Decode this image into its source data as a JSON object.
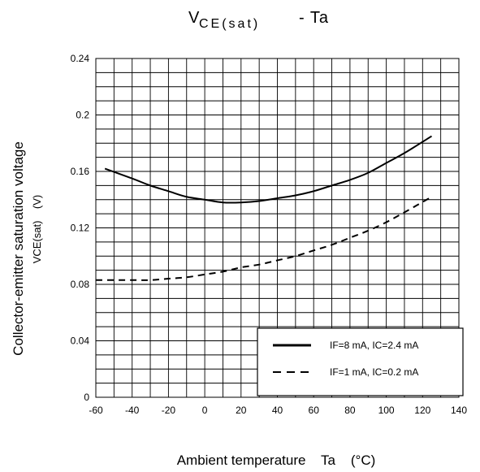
{
  "chart_data": {
    "type": "line",
    "title": "VCE(sat) - Ta",
    "title_parts": {
      "main": "V",
      "sub": "CE(sat)",
      "tail": "- Ta"
    },
    "xlabel": "Ambient temperature    Ta    (°C)",
    "ylabel_line1": "Collector-emitter saturation voltage",
    "ylabel_line2": "VCE(sat)    (V)",
    "xlim": [
      -60,
      140
    ],
    "ylim": [
      0,
      0.24
    ],
    "x_ticks": [
      "-60",
      "-40",
      "-20",
      "0",
      "20",
      "40",
      "60",
      "80",
      "100",
      "120",
      "140"
    ],
    "y_ticks": [
      "0",
      "0.04",
      "0.08",
      "0.12",
      "0.16",
      "0.2",
      "0.24"
    ],
    "grid": true,
    "legend_position": "bottom-right",
    "series": [
      {
        "name": "IF=8 mA, IC=2.4 mA",
        "style": "solid",
        "x": [
          -55,
          -40,
          -30,
          -20,
          -10,
          0,
          10,
          20,
          30,
          40,
          50,
          60,
          70,
          80,
          90,
          100,
          110,
          125
        ],
        "y": [
          0.162,
          0.155,
          0.15,
          0.146,
          0.142,
          0.14,
          0.138,
          0.138,
          0.139,
          0.141,
          0.143,
          0.146,
          0.15,
          0.154,
          0.159,
          0.166,
          0.173,
          0.185
        ]
      },
      {
        "name": "IF=1 mA, IC=0.2 mA",
        "style": "dashed",
        "x": [
          -60,
          -40,
          -30,
          -20,
          -10,
          0,
          10,
          20,
          30,
          40,
          50,
          60,
          70,
          80,
          90,
          100,
          110,
          125
        ],
        "y": [
          0.083,
          0.083,
          0.083,
          0.084,
          0.085,
          0.087,
          0.089,
          0.092,
          0.094,
          0.097,
          0.1,
          0.104,
          0.108,
          0.113,
          0.118,
          0.124,
          0.131,
          0.142
        ]
      }
    ]
  }
}
